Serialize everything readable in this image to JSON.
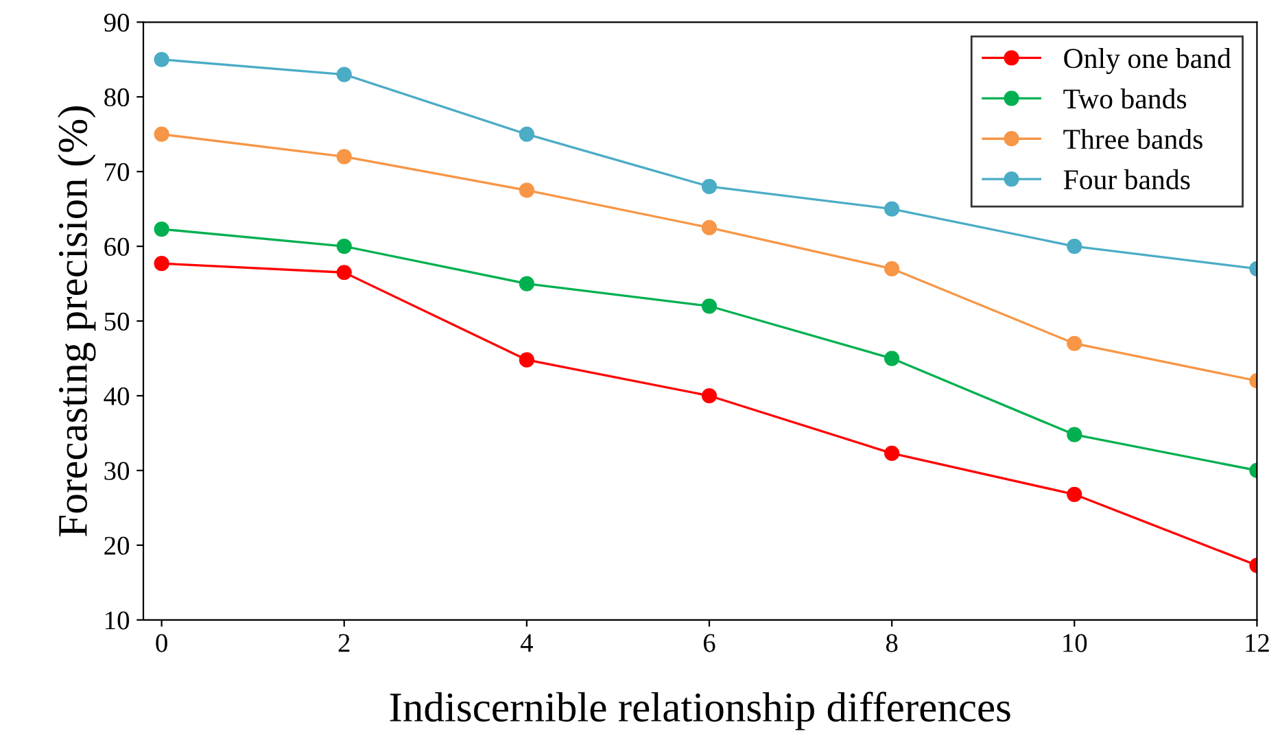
{
  "chart_data": {
    "type": "line",
    "xlabel": "Indiscernible relationship differences",
    "ylabel": "Forecasting precision (%)",
    "categories": [
      "0",
      "2",
      "4",
      "6",
      "8",
      "10",
      "12"
    ],
    "series": [
      {
        "name": "Only one band",
        "color": "#ff0000",
        "values": [
          57.7,
          56.5,
          44.8,
          40,
          32.3,
          26.8,
          17.3
        ]
      },
      {
        "name": "Two bands",
        "color": "#00b050",
        "values": [
          62.3,
          60,
          55,
          52,
          45,
          34.8,
          30
        ]
      },
      {
        "name": "Three bands",
        "color": "#f79646",
        "values": [
          75,
          72,
          67.5,
          62.5,
          57,
          47,
          42
        ]
      },
      {
        "name": "Four bands",
        "color": "#4bacc6",
        "values": [
          85,
          83,
          75,
          68,
          65,
          60,
          57
        ]
      }
    ],
    "ylim": [
      10,
      90
    ],
    "yticks": [
      10,
      20,
      30,
      40,
      50,
      60,
      70,
      80,
      90
    ],
    "legend": "top right",
    "marker": "circle",
    "line_style": "solid",
    "grid": false
  }
}
